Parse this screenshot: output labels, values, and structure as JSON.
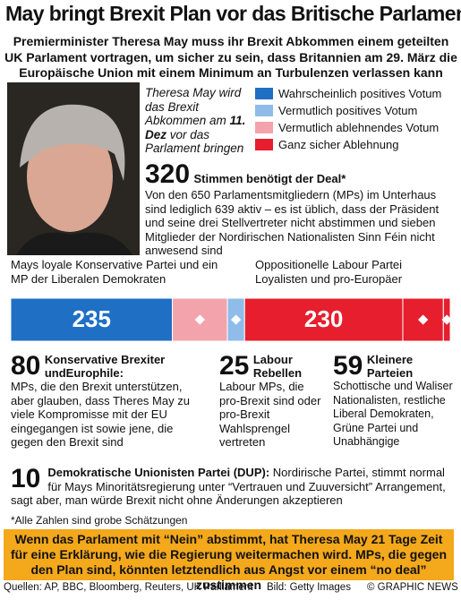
{
  "title": "May bringt Brexit Plan vor das Britische Parlament",
  "subtitle": "Premierminister Theresa May muss ihr Brexit Abkommen einem geteilten UK Parlament vortragen, um sicher zu sein, dass Britannien am 29. März die Europäische Union mit einem Minimum an Turbulenzen verlassen kann",
  "caption": {
    "before": "Theresa May wird das Brexit Abkommen am",
    "date": "11. Dez",
    "after": "vor das Parlament bringen"
  },
  "legend": [
    {
      "label": "Wahrscheinlich positives Votum",
      "color": "#1f6fc5"
    },
    {
      "label": "Vermutlich positives Votum",
      "color": "#8fbce9"
    },
    {
      "label": "Vermutlich ablehnendes Votum",
      "color": "#f3a3ab"
    },
    {
      "label": "Ganz sicher Ablehnung",
      "color": "#e61e2d"
    }
  ],
  "needed": {
    "value": 320,
    "label": "Stimmen benötigt der Deal*",
    "text": "Von den 650 Parlamentsmitgliedern (MPs) im Unterhaus sind lediglich 639 aktiv – es ist üblich, dass der Präsident und seine drei Stellvertreter nicht abstimmen und sieben Mitglieder der Nordirischen Nationalisten Sinn Féin nicht anwesend sind"
  },
  "left_group": "Mays loyale Konservative Partei und ein MP der Liberalen Demokraten",
  "right_group": "Oppositionelle Labour Partei Loyalisten und pro-Europäer",
  "blocks": [
    {
      "value": 235,
      "color": "#1f6fc5"
    },
    {
      "value": 230,
      "color": "#e61e2d"
    }
  ],
  "groups": [
    {
      "value": 80,
      "title": "Konservative Brexiter undEurophile:",
      "text": "MPs, die den Brexit unterstützen, aber glauben, dass Theres May zu viele Kompromisse mit der EU eingegangen ist sowie jene, die gegen den Brexit sind",
      "color": "#f3a3ab"
    },
    {
      "value": 25,
      "title": "Labour Rebellen",
      "text": "Labour MPs, die pro-Brexit sind oder pro-Brexit Wahlsprengel vertreten",
      "color": "#8fbce9"
    },
    {
      "value": 59,
      "title": "Kleinere Parteien",
      "text": "Schottische und Waliser Nationalisten, restliche Liberal Demokraten, Grüne Partei und Unabhängige",
      "color": "#e61e2d"
    },
    {
      "value": 10,
      "title": "Demokratische Unionisten Partei (DUP):",
      "text": "Nordirische Partei, stimmt normal für Mays Minoritätsregierung unter “Vertrauen und Zuuversicht” Arrangement, sagt aber, man würde Brexit nicht ohne Änderungen akzeptieren",
      "color": "#e61e2d"
    }
  ],
  "footnote": "*Alle Zahlen sind grobe Schätzungen",
  "banner": "Wenn das Parlament mit “Nein” abstimmt, hat Theresa May 21 Tage Zeit für eine Erklärung, wie die Regierung weitermachen wird. MPs, die gegen den Plan sind, könnten letztendlich aus Angst vor einem “no deal” zustimmen",
  "sources": "Quellen: AP, BBC, Bloomberg, Reuters, UK Parliament",
  "credit": "Bild: Getty Images",
  "copyright": "© GRAPHIC NEWS"
}
